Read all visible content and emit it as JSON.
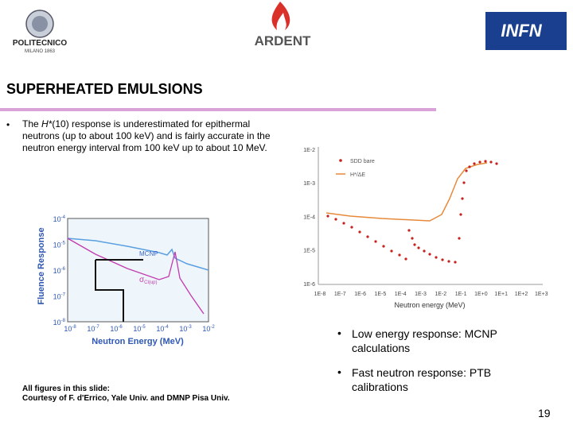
{
  "header": {
    "logo_left": {
      "name": "POLITECNICO",
      "sub": "MILANO 1863"
    },
    "logo_center": "ARDENT",
    "logo_right": "INFN"
  },
  "title": "SUPERHEATED EMULSIONS",
  "bullet": {
    "marker": "•",
    "pre": "The ",
    "italic": "H*",
    "rest": "(10) response is underestimated for epithermal neutrons (up to about 100 keV) and is fairly accurate in the neutron energy interval from 100 keV up to about 10 MeV."
  },
  "left_figure": {
    "y_label": "Fluence Response",
    "x_label": "Neutron Energy (MeV)",
    "y_ticks": [
      {
        "base": "10",
        "exp": "-4"
      },
      {
        "base": "10",
        "exp": "-5"
      },
      {
        "base": "10",
        "exp": "-6"
      },
      {
        "base": "10",
        "exp": "-7"
      },
      {
        "base": "10",
        "exp": "-8"
      }
    ],
    "x_ticks": [
      {
        "base": "10",
        "exp": "-8"
      },
      {
        "base": "10",
        "exp": "-7"
      },
      {
        "base": "10",
        "exp": "-6"
      },
      {
        "base": "10",
        "exp": "-5"
      },
      {
        "base": "10",
        "exp": "-4"
      },
      {
        "base": "10",
        "exp": "-3"
      },
      {
        "base": "10",
        "exp": "-2"
      }
    ],
    "annotation_mcnp": "MCNP",
    "annotation_sigma": {
      "symbol": "σ",
      "sub": "Cl(up)"
    }
  },
  "right_figure": {
    "x_label": "Neutron energy (MeV)",
    "y_ticks": [
      "1E-2",
      "1E-3",
      "1E-4",
      "1E-5",
      "1E-6"
    ],
    "x_ticks": [
      "1E-8",
      "1E-7",
      "1E-6",
      "1E-5",
      "1E-4",
      "1E-3",
      "1E-2",
      "1E-1",
      "1E+0",
      "1E+1",
      "1E+2",
      "1E+3"
    ],
    "legend": [
      "SDD bare",
      "H*/ΔE"
    ]
  },
  "bullets_right": [
    {
      "marker": "•",
      "text": "Low energy response: MCNP calculations"
    },
    {
      "marker": "•",
      "text": "Fast neutron response: PTB calibrations"
    }
  ],
  "caption": [
    "All figures in this slide:",
    "Courtesy of F. d'Errico, Yale Univ. and DMNP Pisa Univ."
  ],
  "page_number": "19"
}
